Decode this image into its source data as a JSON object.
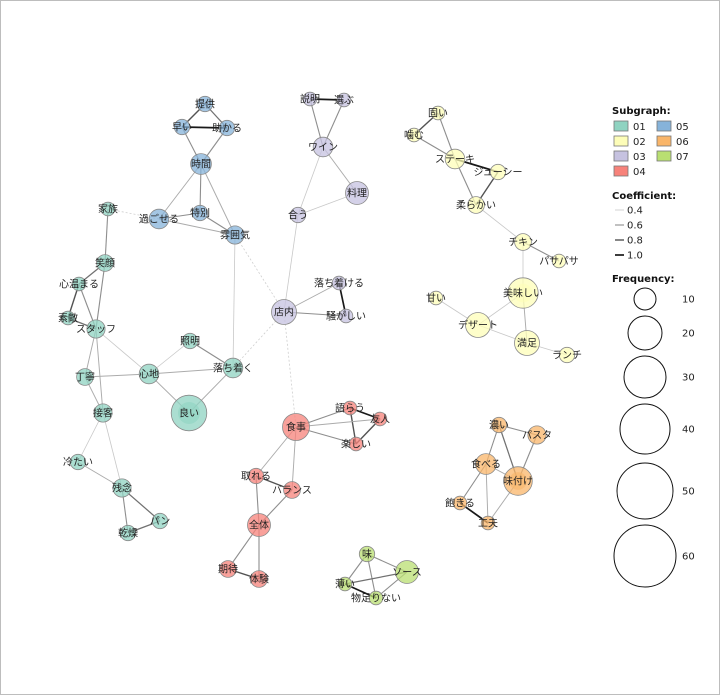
{
  "colors": {
    "01": "#8fd3c1",
    "02": "#fdfdb8",
    "03": "#c6c2e0",
    "04": "#f7827a",
    "05": "#86b3da",
    "06": "#f9b569",
    "07": "#b9df72"
  },
  "nodes": [
    {
      "id": "提供",
      "label": "提供",
      "g": "05",
      "f": 4
    },
    {
      "id": "早い",
      "label": "早い",
      "g": "05",
      "f": 4
    },
    {
      "id": "助かる",
      "label": "助かる",
      "g": "05",
      "f": 4
    },
    {
      "id": "時間",
      "label": "時間",
      "g": "05",
      "f": 8
    },
    {
      "id": "過ごせる",
      "label": "過ごせる",
      "g": "05",
      "f": 7
    },
    {
      "id": "特別",
      "label": "特別",
      "g": "05",
      "f": 4
    },
    {
      "id": "雰囲気",
      "label": "雰囲気",
      "g": "05",
      "f": 6
    },
    {
      "id": "説明",
      "label": "説明",
      "g": "03",
      "f": 3
    },
    {
      "id": "選ぶ",
      "label": "選ぶ",
      "g": "03",
      "f": 3
    },
    {
      "id": "ワイン",
      "label": "ワイン",
      "g": "03",
      "f": 7
    },
    {
      "id": "料理",
      "label": "料理",
      "g": "03",
      "f": 10
    },
    {
      "id": "合う",
      "label": "合う",
      "g": "03",
      "f": 4
    },
    {
      "id": "店内",
      "label": "店内",
      "g": "03",
      "f": 12
    },
    {
      "id": "落ち着ける",
      "label": "落ち着ける",
      "g": "03",
      "f": 3
    },
    {
      "id": "騒がしい",
      "label": "騒がしい",
      "g": "03",
      "f": 3
    },
    {
      "id": "固い",
      "label": "固い",
      "g": "02",
      "f": 3
    },
    {
      "id": "噛む",
      "label": "噛む",
      "g": "02",
      "f": 3
    },
    {
      "id": "ステーキ",
      "label": "ステーキ",
      "g": "02",
      "f": 7
    },
    {
      "id": "ジューシー",
      "label": "ジューシー",
      "g": "02",
      "f": 4
    },
    {
      "id": "柔らかい",
      "label": "柔らかい",
      "g": "02",
      "f": 5
    },
    {
      "id": "チキン",
      "label": "チキン",
      "g": "02",
      "f": 5
    },
    {
      "id": "パサパサ",
      "label": "パサパサ",
      "g": "02",
      "f": 3
    },
    {
      "id": "美味しい",
      "label": "美味しい",
      "g": "02",
      "f": 18
    },
    {
      "id": "甘い",
      "label": "甘い",
      "g": "02",
      "f": 3
    },
    {
      "id": "デザート",
      "label": "デザート",
      "g": "02",
      "f": 12
    },
    {
      "id": "満足",
      "label": "満足",
      "g": "02",
      "f": 12
    },
    {
      "id": "ランチ",
      "label": "ランチ",
      "g": "02",
      "f": 4
    },
    {
      "id": "家族",
      "label": "家族",
      "g": "01",
      "f": 3
    },
    {
      "id": "笑顔",
      "label": "笑顔",
      "g": "01",
      "f": 5
    },
    {
      "id": "心温まる",
      "label": "心温まる",
      "g": "01",
      "f": 3
    },
    {
      "id": "素敵",
      "label": "素敵",
      "g": "01",
      "f": 3
    },
    {
      "id": "スタッフ",
      "label": "スタッフ",
      "g": "01",
      "f": 6
    },
    {
      "id": "丁寧",
      "label": "丁寧",
      "g": "01",
      "f": 5
    },
    {
      "id": "心地",
      "label": "心地",
      "g": "01",
      "f": 7
    },
    {
      "id": "照明",
      "label": "照明",
      "g": "01",
      "f": 4
    },
    {
      "id": "落ち着く",
      "label": "落ち着く",
      "g": "01",
      "f": 7
    },
    {
      "id": "良い",
      "label": "良い",
      "g": "01",
      "f": 25
    },
    {
      "id": "接客",
      "label": "接客",
      "g": "01",
      "f": 6
    },
    {
      "id": "冷たい",
      "label": "冷たい",
      "g": "01",
      "f": 4
    },
    {
      "id": "残念",
      "label": "残念",
      "g": "01",
      "f": 6
    },
    {
      "id": "パン",
      "label": "パン",
      "g": "01",
      "f": 4
    },
    {
      "id": "乾燥",
      "label": "乾燥",
      "g": "01",
      "f": 4
    },
    {
      "id": "語らう",
      "label": "語らう",
      "g": "04",
      "f": 3
    },
    {
      "id": "友人",
      "label": "友人",
      "g": "04",
      "f": 3
    },
    {
      "id": "食事",
      "label": "食事",
      "g": "04",
      "f": 14
    },
    {
      "id": "楽しい",
      "label": "楽しい",
      "g": "04",
      "f": 3
    },
    {
      "id": "取れる",
      "label": "取れる",
      "g": "04",
      "f": 4
    },
    {
      "id": "バランス",
      "label": "バランス",
      "g": "04",
      "f": 5
    },
    {
      "id": "全体",
      "label": "全体",
      "g": "04",
      "f": 10
    },
    {
      "id": "期待",
      "label": "期待",
      "g": "04",
      "f": 5
    },
    {
      "id": "体験",
      "label": "体験",
      "g": "04",
      "f": 5
    },
    {
      "id": "濃い",
      "label": "濃い",
      "g": "06",
      "f": 4
    },
    {
      "id": "パスタ",
      "label": "パスタ",
      "g": "06",
      "f": 6
    },
    {
      "id": "食べる",
      "label": "食べる",
      "g": "06",
      "f": 8
    },
    {
      "id": "味付け",
      "label": "味付け",
      "g": "06",
      "f": 16
    },
    {
      "id": "飽きる",
      "label": "飽きる",
      "g": "06",
      "f": 3
    },
    {
      "id": "工夫",
      "label": "工夫",
      "g": "06",
      "f": 3
    },
    {
      "id": "味",
      "label": "味",
      "g": "07",
      "f": 4
    },
    {
      "id": "ソース",
      "label": "ソース",
      "g": "07",
      "f": 10
    },
    {
      "id": "薄い",
      "label": "薄い",
      "g": "07",
      "f": 3
    },
    {
      "id": "物足りない",
      "label": "物足りない",
      "g": "07",
      "f": 3
    }
  ],
  "edges": [
    {
      "a": "提供",
      "b": "早い",
      "c": 0.8
    },
    {
      "a": "提供",
      "b": "助かる",
      "c": 0.7
    },
    {
      "a": "早い",
      "b": "助かる",
      "c": 1.0
    },
    {
      "a": "早い",
      "b": "時間",
      "c": 0.6
    },
    {
      "a": "助かる",
      "b": "時間",
      "c": 0.6
    },
    {
      "a": "時間",
      "b": "過ごせる",
      "c": 0.5
    },
    {
      "a": "時間",
      "b": "特別",
      "c": 0.6
    },
    {
      "a": "時間",
      "b": "雰囲気",
      "c": 0.5
    },
    {
      "a": "過ごせる",
      "b": "特別",
      "c": 0.6
    },
    {
      "a": "特別",
      "b": "雰囲気",
      "c": 0.6
    },
    {
      "a": "過ごせる",
      "b": "雰囲気",
      "c": 0.5
    },
    {
      "a": "過ごせる",
      "b": "家族",
      "c": 0.4,
      "dash": true
    },
    {
      "a": "雰囲気",
      "b": "店内",
      "c": 0.4,
      "dash": true
    },
    {
      "a": "雰囲気",
      "b": "落ち着く",
      "c": 0.4
    },
    {
      "a": "説明",
      "b": "選ぶ",
      "c": 1.0
    },
    {
      "a": "説明",
      "b": "ワイン",
      "c": 0.6
    },
    {
      "a": "選ぶ",
      "b": "ワイン",
      "c": 0.6
    },
    {
      "a": "ワイン",
      "b": "料理",
      "c": 0.5
    },
    {
      "a": "ワイン",
      "b": "合う",
      "c": 0.4
    },
    {
      "a": "料理",
      "b": "合う",
      "c": 0.4
    },
    {
      "a": "合う",
      "b": "店内",
      "c": 0.4
    },
    {
      "a": "店内",
      "b": "落ち着ける",
      "c": 0.5
    },
    {
      "a": "店内",
      "b": "騒がしい",
      "c": 0.6
    },
    {
      "a": "落ち着ける",
      "b": "騒がしい",
      "c": 1.0
    },
    {
      "a": "店内",
      "b": "落ち着く",
      "c": 0.4,
      "dash": true
    },
    {
      "a": "店内",
      "b": "食事",
      "c": 0.4,
      "dash": true
    },
    {
      "a": "固い",
      "b": "噛む",
      "c": 0.8
    },
    {
      "a": "固い",
      "b": "ステーキ",
      "c": 0.6
    },
    {
      "a": "噛む",
      "b": "ステーキ",
      "c": 0.6
    },
    {
      "a": "ステーキ",
      "b": "ジューシー",
      "c": 1.0
    },
    {
      "a": "ステーキ",
      "b": "柔らかい",
      "c": 0.6
    },
    {
      "a": "ジューシー",
      "b": "柔らかい",
      "c": 0.8
    },
    {
      "a": "柔らかい",
      "b": "チキン",
      "c": 0.4
    },
    {
      "a": "チキン",
      "b": "パサパサ",
      "c": 0.6
    },
    {
      "a": "チキン",
      "b": "美味しい",
      "c": 0.4
    },
    {
      "a": "美味しい",
      "b": "デザート",
      "c": 0.4
    },
    {
      "a": "美味しい",
      "b": "満足",
      "c": 0.5
    },
    {
      "a": "甘い",
      "b": "デザート",
      "c": 0.4
    },
    {
      "a": "デザート",
      "b": "満足",
      "c": 0.4
    },
    {
      "a": "満足",
      "b": "ランチ",
      "c": 0.4
    },
    {
      "a": "家族",
      "b": "笑顔",
      "c": 0.6
    },
    {
      "a": "笑顔",
      "b": "心温まる",
      "c": 0.7
    },
    {
      "a": "笑顔",
      "b": "スタッフ",
      "c": 0.6
    },
    {
      "a": "心温まる",
      "b": "素敵",
      "c": 0.8
    },
    {
      "a": "心温まる",
      "b": "スタッフ",
      "c": 0.6
    },
    {
      "a": "素敵",
      "b": "スタッフ",
      "c": 0.7
    },
    {
      "a": "スタッフ",
      "b": "丁寧",
      "c": 0.5
    },
    {
      "a": "スタッフ",
      "b": "接客",
      "c": 0.5
    },
    {
      "a": "スタッフ",
      "b": "心地",
      "c": 0.4
    },
    {
      "a": "丁寧",
      "b": "接客",
      "c": 0.5
    },
    {
      "a": "丁寧",
      "b": "心地",
      "c": 0.5
    },
    {
      "a": "心地",
      "b": "照明",
      "c": 0.4
    },
    {
      "a": "心地",
      "b": "落ち着く",
      "c": 0.5
    },
    {
      "a": "心地",
      "b": "良い",
      "c": 0.5
    },
    {
      "a": "照明",
      "b": "落ち着く",
      "c": 0.6
    },
    {
      "a": "落ち着く",
      "b": "良い",
      "c": 0.5
    },
    {
      "a": "接客",
      "b": "冷たい",
      "c": 0.4
    },
    {
      "a": "冷たい",
      "b": "残念",
      "c": 0.5
    },
    {
      "a": "接客",
      "b": "残念",
      "c": 0.4
    },
    {
      "a": "残念",
      "b": "パン",
      "c": 0.7
    },
    {
      "a": "残念",
      "b": "乾燥",
      "c": 0.6
    },
    {
      "a": "パン",
      "b": "乾燥",
      "c": 0.7
    },
    {
      "a": "語らう",
      "b": "友人",
      "c": 1.0
    },
    {
      "a": "語らう",
      "b": "楽しい",
      "c": 0.8
    },
    {
      "a": "友人",
      "b": "楽しい",
      "c": 0.8
    },
    {
      "a": "食事",
      "b": "語らう",
      "c": 0.6
    },
    {
      "a": "食事",
      "b": "楽しい",
      "c": 0.6
    },
    {
      "a": "食事",
      "b": "友人",
      "c": 0.5
    },
    {
      "a": "食事",
      "b": "取れる",
      "c": 0.5
    },
    {
      "a": "食事",
      "b": "バランス",
      "c": 0.5
    },
    {
      "a": "取れる",
      "b": "バランス",
      "c": 0.8
    },
    {
      "a": "取れる",
      "b": "全体",
      "c": 0.6
    },
    {
      "a": "バランス",
      "b": "全体",
      "c": 0.6
    },
    {
      "a": "全体",
      "b": "期待",
      "c": 0.6
    },
    {
      "a": "全体",
      "b": "体験",
      "c": 0.6
    },
    {
      "a": "期待",
      "b": "体験",
      "c": 0.8
    },
    {
      "a": "濃い",
      "b": "パスタ",
      "c": 0.6
    },
    {
      "a": "濃い",
      "b": "食べる",
      "c": 0.6
    },
    {
      "a": "濃い",
      "b": "味付け",
      "c": 0.7
    },
    {
      "a": "パスタ",
      "b": "味付け",
      "c": 0.6
    },
    {
      "a": "食べる",
      "b": "味付け",
      "c": 0.5
    },
    {
      "a": "食べる",
      "b": "飽きる",
      "c": 0.6
    },
    {
      "a": "飽きる",
      "b": "工夫",
      "c": 1.0
    },
    {
      "a": "食べる",
      "b": "工夫",
      "c": 0.5
    },
    {
      "a": "味付け",
      "b": "工夫",
      "c": 0.5
    },
    {
      "a": "味",
      "b": "ソース",
      "c": 0.6
    },
    {
      "a": "味",
      "b": "薄い",
      "c": 0.6
    },
    {
      "a": "味",
      "b": "物足りない",
      "c": 0.6
    },
    {
      "a": "ソース",
      "b": "薄い",
      "c": 0.7
    },
    {
      "a": "ソース",
      "b": "物足りない",
      "c": 0.6
    },
    {
      "a": "薄い",
      "b": "物足りない",
      "c": 1.0
    }
  ],
  "legend": {
    "subgraph_title": "Subgraph:",
    "subgraphs": [
      "01",
      "02",
      "03",
      "04",
      "05",
      "06",
      "07"
    ],
    "coefficient_title": "Coefficient:",
    "coefficients": [
      "0.4",
      "0.6",
      "0.8",
      "1.0"
    ],
    "frequency_title": "Frequency:",
    "frequencies": [
      "10",
      "20",
      "30",
      "40",
      "50",
      "60"
    ]
  }
}
